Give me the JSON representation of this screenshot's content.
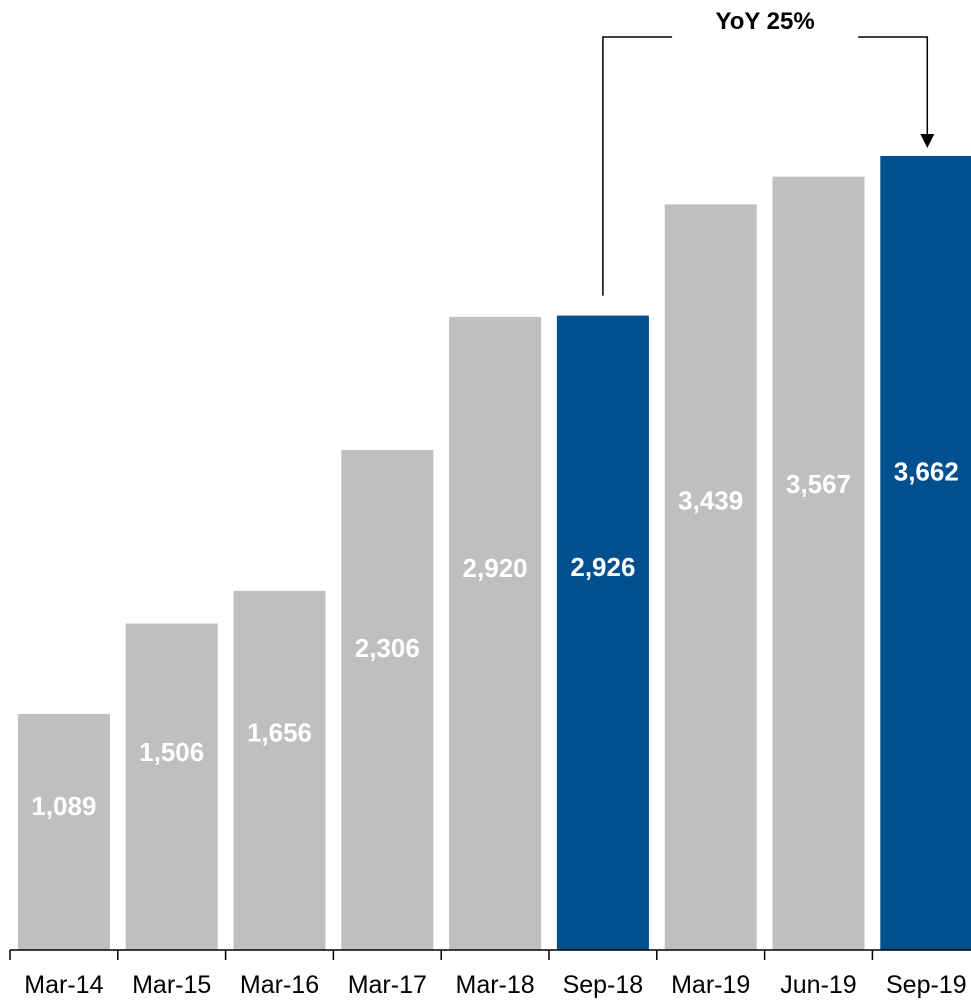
{
  "chart_data": {
    "type": "bar",
    "categories": [
      "Mar-14",
      "Mar-15",
      "Mar-16",
      "Mar-17",
      "Mar-18",
      "Sep-18",
      "Mar-19",
      "Jun-19",
      "Sep-19"
    ],
    "values": [
      1089,
      1506,
      1656,
      2306,
      2920,
      2926,
      3439,
      3567,
      3662
    ],
    "value_labels": [
      "1,089",
      "1,506",
      "1,656",
      "2,306",
      "2,920",
      "2,926",
      "3,439",
      "3,567",
      "3,662"
    ],
    "highlighted": [
      "Sep-18",
      "Sep-19"
    ],
    "colors": {
      "default": "#bfbfbf",
      "highlight": "#004f8f"
    },
    "annotation": {
      "text": "YoY 25%",
      "from": "Sep-18",
      "to": "Sep-19"
    },
    "ylim": [
      0,
      3662
    ],
    "grid": false,
    "legend": "none"
  }
}
